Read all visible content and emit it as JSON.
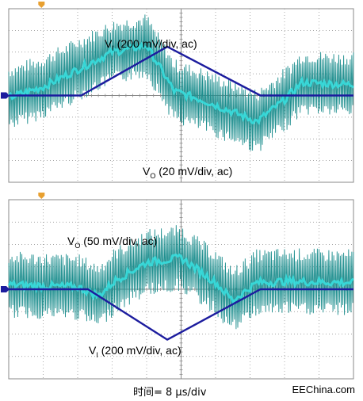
{
  "colors": {
    "grid": "#8a8a8a",
    "trace_input": "#1c1c9e",
    "trace_output_dark": "#1f8f8f",
    "trace_output_light": "#37e0e0",
    "marker": "#e8a030"
  },
  "footer": {
    "time_label": "时间= 8 μs/div",
    "site": "EEChina.com"
  },
  "chart_data": [
    {
      "type": "line",
      "panel": "top",
      "title": "",
      "grid": {
        "x_divisions": 10,
        "y_divisions": 8
      },
      "x_unit": "div",
      "xlim": [
        0,
        10
      ],
      "y_unit": "div",
      "ylim": [
        -4,
        4
      ],
      "annotations": [
        {
          "id": "vi",
          "sub": "I",
          "prefix": "V",
          "suffix": " (200 mV/div, ac)"
        },
        {
          "id": "vo",
          "sub": "O",
          "prefix": "V",
          "suffix": " (20 mV/div, ac)"
        }
      ],
      "series": [
        {
          "name": "VI",
          "x": [
            0,
            2.1,
            4.6,
            7.3,
            10
          ],
          "y": [
            0,
            0,
            2.25,
            0,
            0
          ]
        },
        {
          "name": "VO",
          "x": [
            0,
            1.0,
            2.0,
            3.0,
            4.0,
            4.8,
            5.6,
            6.4,
            7.2,
            8.0,
            8.5,
            10
          ],
          "y": [
            -0.1,
            0.4,
            1.2,
            2.0,
            2.3,
            0.2,
            -0.2,
            -0.7,
            -1.2,
            -0.2,
            0.6,
            0.5
          ]
        }
      ]
    },
    {
      "type": "line",
      "panel": "bottom",
      "title": "",
      "grid": {
        "x_divisions": 10,
        "y_divisions": 8
      },
      "x_unit": "div",
      "xlim": [
        0,
        10
      ],
      "y_unit": "div",
      "ylim": [
        -4,
        4
      ],
      "annotations": [
        {
          "id": "vo",
          "sub": "O",
          "prefix": "V",
          "suffix": " (50 mV/div, ac)"
        },
        {
          "id": "vi",
          "sub": "I",
          "prefix": "V",
          "suffix": " (200 mV/div, ac)"
        }
      ],
      "series": [
        {
          "name": "VI",
          "x": [
            0,
            2.3,
            4.6,
            7.3,
            10
          ],
          "y": [
            0,
            0,
            -2.25,
            0,
            0
          ]
        },
        {
          "name": "VO",
          "x": [
            0,
            2.0,
            2.6,
            3.1,
            4.0,
            5.0,
            6.0,
            6.5,
            7.2,
            8.0,
            10
          ],
          "y": [
            0.2,
            0.1,
            -0.3,
            0.4,
            1.2,
            1.4,
            0.3,
            -0.5,
            0.3,
            0.35,
            0.3
          ]
        }
      ]
    }
  ]
}
